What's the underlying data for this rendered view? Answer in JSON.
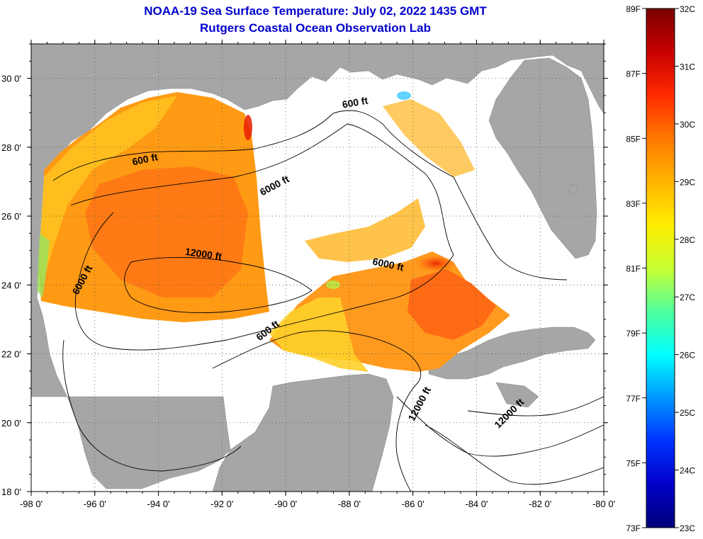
{
  "title_line1": "NOAA-19 Sea Surface Temperature:  July 02, 2022 1435 GMT",
  "title_line2": "Rutgers Coastal Ocean Observation Lab",
  "lon_ticks": [
    {
      "value": -98,
      "label": "-98 0'"
    },
    {
      "value": -96,
      "label": "-96 0'"
    },
    {
      "value": -94,
      "label": "-94 0'"
    },
    {
      "value": -92,
      "label": "-92 0'"
    },
    {
      "value": -90,
      "label": "-90 0'"
    },
    {
      "value": -88,
      "label": "-88 0'"
    },
    {
      "value": -86,
      "label": "-86 0'"
    },
    {
      "value": -84,
      "label": "-84 0'"
    },
    {
      "value": -82,
      "label": "-82 0'"
    },
    {
      "value": -80,
      "label": "-80 0'"
    }
  ],
  "lat_ticks": [
    {
      "value": 30,
      "label": "30 0'"
    },
    {
      "value": 28,
      "label": "28 0'"
    },
    {
      "value": 26,
      "label": "26 0'"
    },
    {
      "value": 24,
      "label": "24 0'"
    },
    {
      "value": 22,
      "label": "22 0'"
    },
    {
      "value": 20,
      "label": "20 0'"
    },
    {
      "value": 18,
      "label": "18 0'"
    }
  ],
  "bounds": {
    "lon_min": -98,
    "lon_max": -80,
    "lat_min": 18,
    "lat_max": 31
  },
  "contour_labels": [
    {
      "text": "600 ft",
      "lon": -94.4,
      "lat": 27.55,
      "angle": -12
    },
    {
      "text": "600 ft",
      "lon": -87.8,
      "lat": 29.2,
      "angle": -10
    },
    {
      "text": "6000 ft",
      "lon": -90.3,
      "lat": 26.8,
      "angle": -28
    },
    {
      "text": "12000 ft",
      "lon": -92.6,
      "lat": 24.8,
      "angle": 8
    },
    {
      "text": "6000 ft",
      "lon": -86.8,
      "lat": 24.5,
      "angle": 12
    },
    {
      "text": "6000 ft",
      "lon": -96.3,
      "lat": 24.1,
      "angle": -62
    },
    {
      "text": "600 ft",
      "lon": -90.5,
      "lat": 22.6,
      "angle": -38
    },
    {
      "text": "12000 ft",
      "lon": -85.7,
      "lat": 20.5,
      "angle": -62
    },
    {
      "text": "12000 ft",
      "lon": -82.9,
      "lat": 20.2,
      "angle": -45
    }
  ],
  "colorbar": {
    "fahrenheit_labels": [
      "89F",
      "87F",
      "85F",
      "83F",
      "81F",
      "79F",
      "77F",
      "75F",
      "73F"
    ],
    "celsius_labels": [
      "32C",
      "31C",
      "30C",
      "29C",
      "28C",
      "27C",
      "26C",
      "25C",
      "24C",
      "23C"
    ],
    "colors_top_to_bottom": [
      "#7a0000",
      "#c80000",
      "#ff2a00",
      "#ff7800",
      "#ffb400",
      "#ffee00",
      "#c8ff32",
      "#50ff9b",
      "#00ffff",
      "#0096ff",
      "#0032ff",
      "#0000c8",
      "#00007a"
    ]
  },
  "colors": {
    "land": "#a6a6a6",
    "nodata": "#ffffff",
    "title": "#0000cc"
  }
}
